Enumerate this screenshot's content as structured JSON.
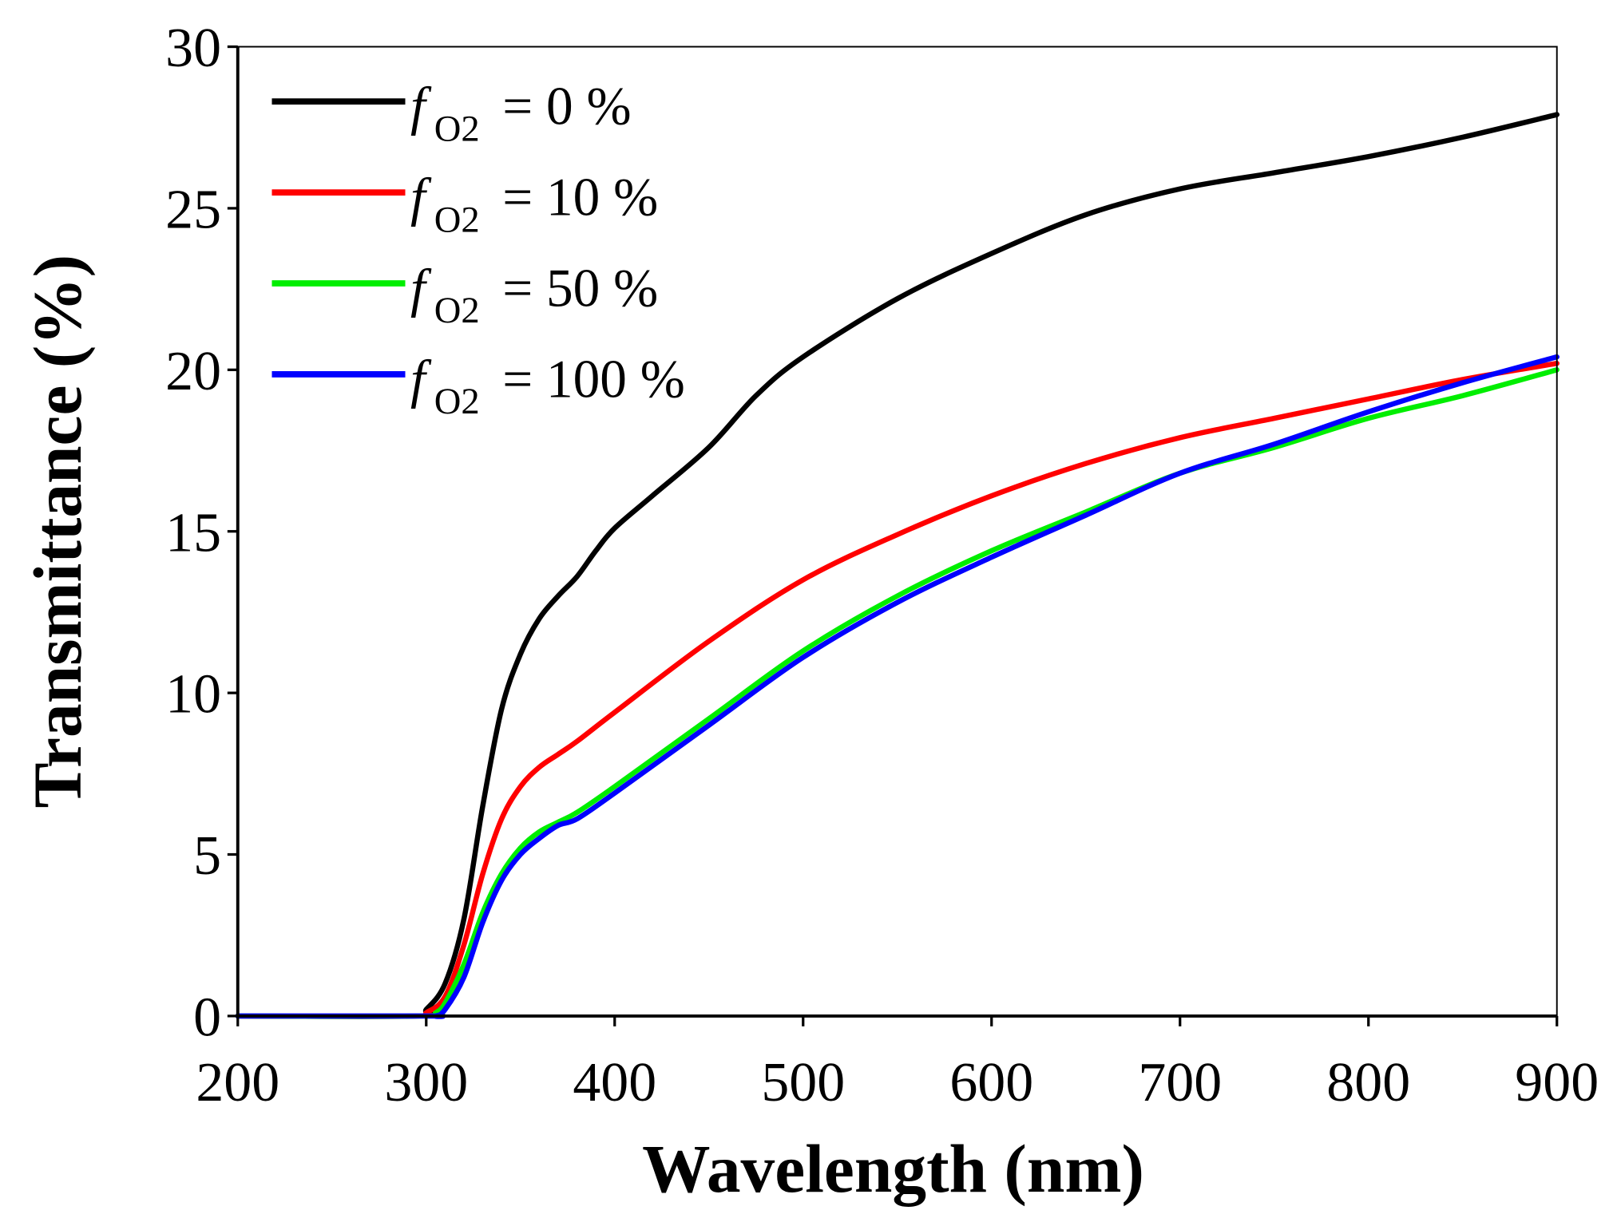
{
  "chart_data": {
    "type": "line",
    "title": "",
    "xlabel": "Wavelength (nm)",
    "ylabel": "Transmittance (%)",
    "xlim": [
      200,
      900
    ],
    "ylim": [
      0,
      30
    ],
    "xticks": [
      "200",
      "300",
      "400",
      "500",
      "600",
      "700",
      "800",
      "900"
    ],
    "yticks": [
      "0",
      "5",
      "10",
      "15",
      "20",
      "25",
      "30"
    ],
    "grid": false,
    "legend_position": "top-left",
    "legend_prefix": "f",
    "legend_subscript": "O2",
    "series": [
      {
        "name": "f_O2 = 0 %",
        "label_value": "= 0 %",
        "color": "#000000",
        "x": [
          200,
          295,
          300,
          310,
          320,
          330,
          340,
          350,
          360,
          370,
          380,
          390,
          400,
          420,
          450,
          475,
          500,
          550,
          600,
          650,
          700,
          750,
          800,
          850,
          900
        ],
        "y": [
          0,
          0,
          0.2,
          1,
          3,
          6.5,
          9.5,
          11.2,
          12.3,
          13,
          13.6,
          14.4,
          15.1,
          16.1,
          17.6,
          19.2,
          20.4,
          22.2,
          23.6,
          24.8,
          25.6,
          26.1,
          26.6,
          27.2,
          27.9
        ]
      },
      {
        "name": "f_O2 = 10 %",
        "label_value": "= 10 %",
        "color": "#ff0000",
        "x": [
          200,
          295,
          300,
          310,
          320,
          330,
          340,
          350,
          360,
          370,
          380,
          400,
          450,
          500,
          550,
          600,
          650,
          700,
          750,
          800,
          850,
          900
        ],
        "y": [
          0,
          0,
          0.1,
          0.6,
          2.2,
          4.4,
          6.1,
          7.1,
          7.7,
          8.1,
          8.5,
          9.4,
          11.6,
          13.5,
          14.9,
          16.1,
          17.1,
          17.9,
          18.5,
          19.1,
          19.7,
          20.2
        ]
      },
      {
        "name": "f_O2 = 50 %",
        "label_value": "= 50 %",
        "color": "#00ee00",
        "x": [
          200,
          300,
          305,
          310,
          320,
          330,
          340,
          350,
          360,
          370,
          380,
          400,
          450,
          500,
          550,
          600,
          650,
          700,
          750,
          800,
          850,
          900
        ],
        "y": [
          0,
          0,
          0.1,
          0.4,
          1.6,
          3.2,
          4.4,
          5.2,
          5.7,
          6.0,
          6.3,
          7.1,
          9.2,
          11.3,
          13.0,
          14.4,
          15.6,
          16.8,
          17.6,
          18.5,
          19.2,
          20.0
        ]
      },
      {
        "name": "f_O2 = 100 %",
        "label_value": "= 100 %",
        "color": "#0000ff",
        "x": [
          200,
          300,
          305,
          310,
          320,
          330,
          340,
          350,
          360,
          370,
          380,
          400,
          450,
          500,
          550,
          600,
          650,
          700,
          750,
          800,
          850,
          900
        ],
        "y": [
          0,
          0,
          0,
          0.2,
          1.2,
          2.9,
          4.2,
          5.0,
          5.5,
          5.9,
          6.1,
          6.9,
          9.0,
          11.1,
          12.8,
          14.2,
          15.5,
          16.8,
          17.7,
          18.7,
          19.6,
          20.4
        ]
      }
    ]
  }
}
